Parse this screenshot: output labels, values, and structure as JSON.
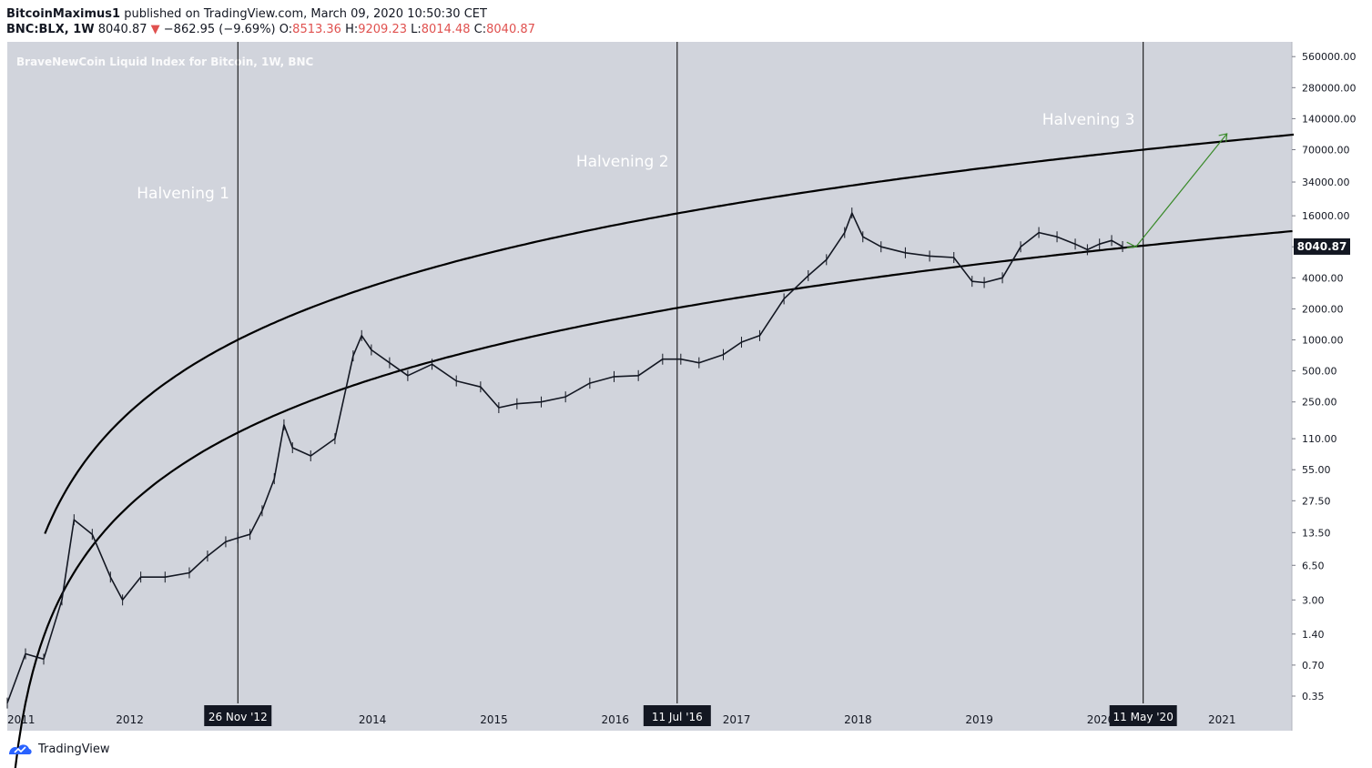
{
  "header": {
    "author": "BitcoinMaximus1",
    "published": "published on TradingView.com, March 09, 2020 10:50:30 CET"
  },
  "ohlc": {
    "symbol": "BNC:BLX, 1W",
    "last": "8040.87",
    "change": "−862.95 (−9.69%)",
    "o_label": "O:",
    "o": "8513.36",
    "h_label": "H:",
    "h": "9209.23",
    "l_label": "L:",
    "l": "8014.48",
    "c_label": "C:",
    "c": "8040.87"
  },
  "footer": {
    "brand": "TradingView"
  },
  "colors": {
    "plot_bg": "#d1d4dc",
    "trend": "#000000",
    "arrow": "#3a8a2a",
    "text_dim": "#ffffff",
    "price_tag": "#131722"
  },
  "chart_data": {
    "type": "line",
    "title": "BraveNewCoin Liquid Index for Bitcoin, 1W, BNC",
    "scale": "log",
    "x_ticks": [
      "2011",
      "2012",
      "2014",
      "2015",
      "2016",
      "2017",
      "2018",
      "2019",
      "2020",
      "2021"
    ],
    "y_ticks": [
      "560000.00",
      "280000.00",
      "140000.00",
      "70000.00",
      "34000.00",
      "16000.00",
      "8000.00",
      "4000.00",
      "2000.00",
      "1000.00",
      "500.00",
      "250.00",
      "110.00",
      "55.00",
      "27.50",
      "13.50",
      "6.50",
      "3.00",
      "1.40",
      "0.70",
      "0.35"
    ],
    "last_price_label": "8040.87",
    "series": [
      {
        "x": [
          2011.0,
          2011.15,
          2011.3,
          2011.45,
          2011.55,
          2011.7,
          2011.85,
          2011.95,
          2012.1,
          2012.3,
          2012.5,
          2012.65,
          2012.8,
          2012.9,
          2013.0,
          2013.1,
          2013.2,
          2013.28,
          2013.35,
          2013.5,
          2013.7,
          2013.85,
          2013.92,
          2014.0,
          2014.15,
          2014.3,
          2014.5,
          2014.7,
          2014.9,
          2015.05,
          2015.2,
          2015.4,
          2015.6,
          2015.8,
          2016.0,
          2016.2,
          2016.4,
          2016.55,
          2016.7,
          2016.9,
          2017.05,
          2017.2,
          2017.4,
          2017.6,
          2017.75,
          2017.9,
          2017.96,
          2018.05,
          2018.2,
          2018.4,
          2018.6,
          2018.8,
          2018.95,
          2019.05,
          2019.2,
          2019.35,
          2019.5,
          2019.65,
          2019.8,
          2019.9,
          2020.0,
          2020.1,
          2020.19
        ],
        "y": [
          0.3,
          0.9,
          0.8,
          3,
          18,
          13,
          5,
          3,
          5,
          5,
          5.5,
          8,
          11,
          12,
          13,
          22,
          45,
          150,
          90,
          75,
          110,
          700,
          1100,
          800,
          600,
          450,
          580,
          400,
          350,
          220,
          240,
          250,
          280,
          380,
          440,
          450,
          650,
          650,
          600,
          720,
          950,
          1100,
          2500,
          4200,
          6000,
          11000,
          17000,
          10000,
          8000,
          7000,
          6500,
          6300,
          3700,
          3600,
          4000,
          8000,
          11000,
          10000,
          8500,
          7500,
          8500,
          9200,
          8040
        ]
      }
    ],
    "annotations": {
      "halvings": [
        {
          "label": "Halvening 1",
          "date_tag": "26 Nov '12",
          "x": 2012.9
        },
        {
          "label": "Halvening 2",
          "date_tag": "11 Jul '16",
          "x": 2016.52
        },
        {
          "label": "Halvening 3",
          "date_tag": "11 May '20",
          "x": 2020.36
        }
      ],
      "projection": {
        "from": [
          2020.3,
          8000
        ],
        "to": [
          2021.05,
          100000
        ]
      }
    },
    "ylim": [
      0.2,
      700000
    ],
    "xlim": [
      2011.0,
      2021.6
    ],
    "grid": false,
    "legend": "none"
  }
}
